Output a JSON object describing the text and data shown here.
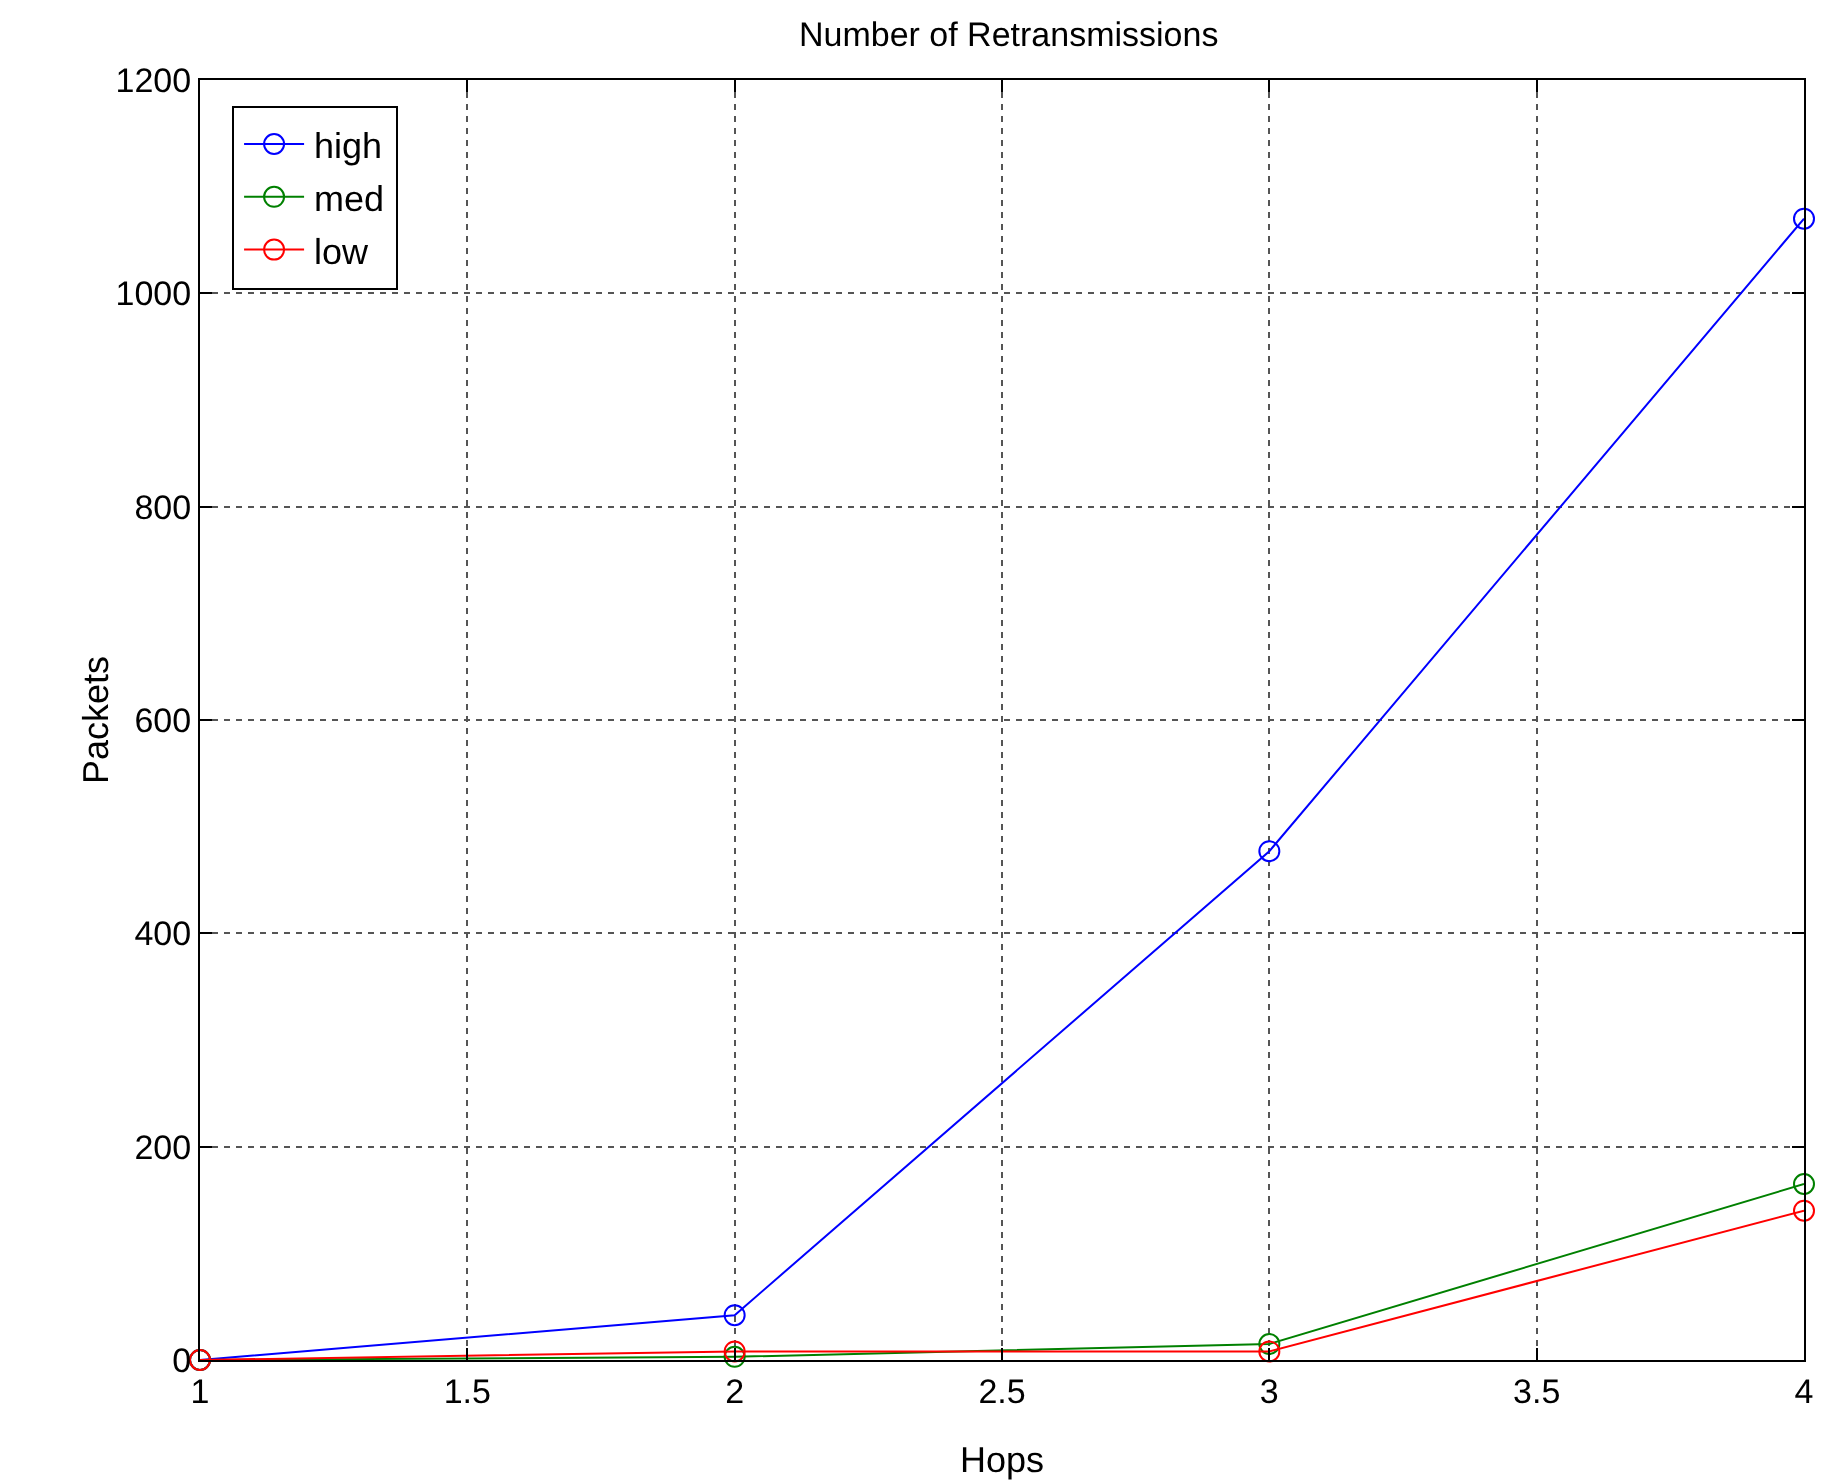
{
  "chart_data": {
    "type": "line",
    "title": "Number of Retransmissions",
    "xlabel": "Hops",
    "ylabel": "Packets",
    "x": [
      1,
      2,
      3,
      4
    ],
    "series": [
      {
        "name": "high",
        "color": "#0000ff",
        "values": [
          0,
          42,
          477,
          1070
        ]
      },
      {
        "name": "med",
        "color": "#008000",
        "values": [
          0,
          3,
          15,
          165
        ]
      },
      {
        "name": "low",
        "color": "#ff0000",
        "values": [
          0,
          8,
          8,
          140
        ]
      }
    ],
    "xlim": [
      1,
      4
    ],
    "xticks": [
      1,
      1.5,
      2,
      2.5,
      3,
      3.5,
      4
    ],
    "ylim": [
      0,
      1200
    ],
    "yticks": [
      0,
      200,
      400,
      600,
      800,
      1000,
      1200
    ],
    "grid": true,
    "legend": "top left",
    "marker": "circle",
    "line_style": "solid"
  }
}
